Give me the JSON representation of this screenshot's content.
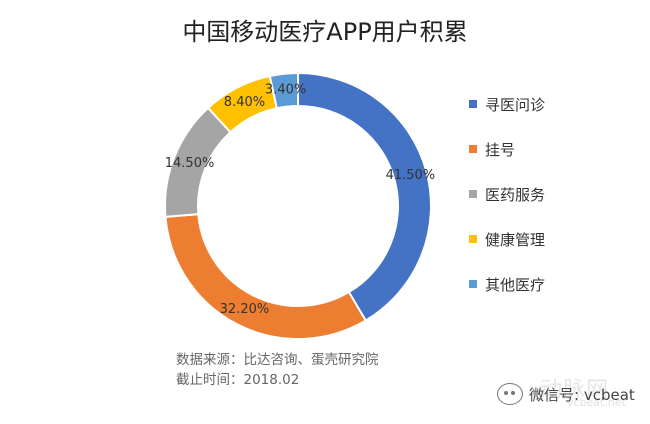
{
  "chart_data": {
    "type": "donut",
    "title": "中国移动医疗APP用户积累",
    "categories": [
      "寻医问诊",
      "挂号",
      "医药服务",
      "健康管理",
      "其他医疗"
    ],
    "values": [
      41.5,
      32.2,
      14.5,
      8.4,
      3.4
    ],
    "data_labels": [
      "41.50%",
      "32.20%",
      "14.50%",
      "8.40%",
      "3.40%"
    ],
    "colors": [
      "#4472C4",
      "#ED7D31",
      "#A5A5A5",
      "#FFC000",
      "#5B9BD5"
    ],
    "legend_position": "right"
  },
  "source": {
    "line1": "数据来源：比达咨询、蛋壳研究院",
    "line2": "截止时间：2018.02"
  },
  "watermark": {
    "text": "微信号: vcbeat",
    "bg_text": "动脉网",
    "bg_sub": "vcbeat.net"
  }
}
